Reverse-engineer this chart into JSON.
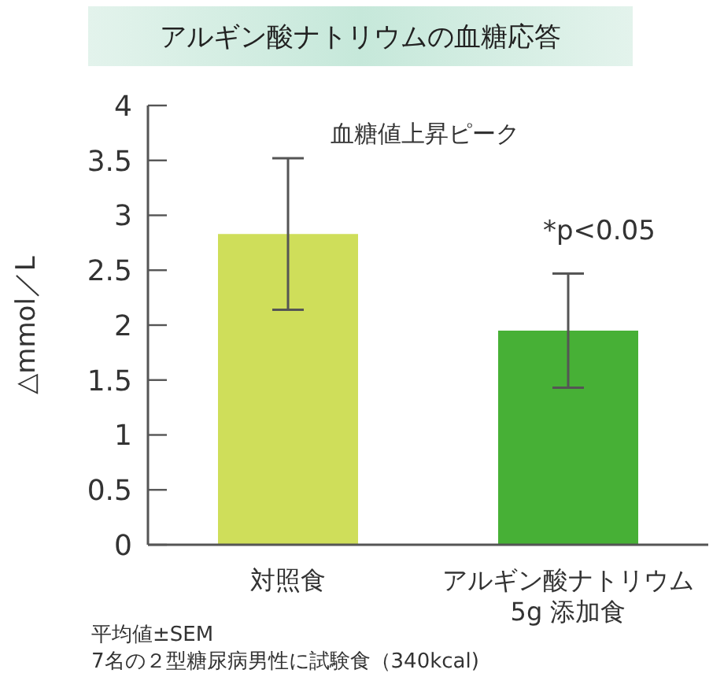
{
  "chart_data": {
    "type": "bar",
    "title": "アルギン酸ナトリウムの血糖応答",
    "ylabel": "△mmol／L",
    "categories": [
      "対照食",
      "アルギン酸ナトリウム\n5g 添加食"
    ],
    "values": [
      2.83,
      1.95
    ],
    "colors": [
      "#cfde5a",
      "#47b036"
    ],
    "errors": [
      0.69,
      0.52
    ],
    "ylim": [
      0,
      4
    ],
    "yticks": [
      0,
      0.5,
      1,
      1.5,
      2,
      2.5,
      3,
      3.5,
      4
    ],
    "grid": false,
    "legend": false,
    "annotations": [
      "血糖値上昇ピーク",
      "*p<0.05",
      "平均値±SEM",
      "7名の２型糖尿病男性に試験食（340kcal)"
    ]
  }
}
